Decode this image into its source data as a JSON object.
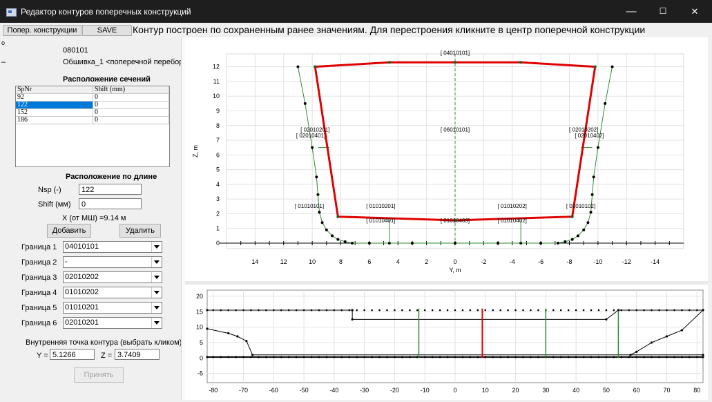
{
  "window": {
    "title": "Редактор контуров поперечных конструкций",
    "min_glyph": "—",
    "max_glyph": "☐",
    "close_glyph": "✕"
  },
  "toolbar": {
    "btn_cross": "Попер. конструкции",
    "btn_save": "SAVE",
    "message": "Контур построен по сохраненным ранее значениям. Для перестроения кликните в центр поперечной конструкции"
  },
  "left": {
    "corner_mark": "o",
    "dash_mark": "–",
    "code": "080101",
    "name": "Обшивка_1 <поперечной переборки 1>",
    "sections_title": "Расположение сечений",
    "grid": {
      "headers": [
        "SpNr",
        "Shift (mm)"
      ],
      "rows": [
        [
          "92",
          "0"
        ],
        [
          "122",
          "0"
        ],
        [
          "152",
          "0"
        ],
        [
          "186",
          "0"
        ]
      ]
    },
    "length_title": "Расположение по длине",
    "nsp_label": "Nsp (-)",
    "nsp_value": "122",
    "shift_label": "Shift (мм)",
    "shift_value": "0",
    "x_text": "X (от МШ) =9.14 м",
    "add": "Добавить",
    "del": "Удалить",
    "borders": [
      {
        "label": "Граница 1",
        "value": "04010101"
      },
      {
        "label": "Граница 2",
        "value": "-"
      },
      {
        "label": "Граница 3",
        "value": "02010202"
      },
      {
        "label": "Граница 4",
        "value": "01010202"
      },
      {
        "label": "Граница 5",
        "value": "01010201"
      },
      {
        "label": "Граница 6",
        "value": "02010201"
      }
    ],
    "inner_title": "Внутренняя точка контура (выбрать кликом)",
    "y_label": "Y =",
    "y_value": "5.1266",
    "z_label": "Z =",
    "z_value": "3.7409",
    "accept": "Принять"
  },
  "chart_data": [
    {
      "type": "line",
      "xlabel": "Y, m",
      "ylabel": "Z, m",
      "xlim": [
        16,
        -16
      ],
      "ylim": [
        0,
        12.5
      ],
      "x_ticks": [
        14,
        12,
        10,
        8,
        6,
        4,
        2,
        0,
        -2,
        -4,
        -6,
        -8,
        -10,
        -12,
        -14
      ],
      "y_ticks": [
        0,
        1,
        2,
        3,
        4,
        5,
        6,
        7,
        8,
        9,
        10,
        11,
        12
      ],
      "grid": true,
      "series": [
        {
          "color": "#2e8b2e",
          "x": [
            11,
            10.5,
            10,
            9.7,
            9.6,
            9.5,
            9.3,
            9.0,
            8.6,
            8.2,
            7.7,
            7.2,
            6,
            4.6,
            3,
            0,
            -3,
            -4.6,
            -6,
            -7.2,
            -7.7,
            -8.2,
            -8.6,
            -9.0,
            -9.3,
            -9.5,
            -9.6,
            -9.7,
            -10,
            -10.5,
            -11
          ],
          "y": [
            12,
            9.5,
            6.5,
            4.5,
            3.3,
            2.1,
            1.4,
            0.9,
            0.5,
            0.25,
            0.1,
            0,
            0,
            0,
            0,
            0,
            0,
            0,
            0,
            0,
            0.1,
            0.25,
            0.5,
            0.9,
            1.4,
            2.1,
            3.3,
            4.5,
            6.5,
            9.5,
            12
          ]
        },
        {
          "color": "#e00000",
          "x": [
            9.8,
            8.2,
            0,
            -8.2,
            -9.8,
            -4.6,
            0,
            4.6,
            9.8
          ],
          "y": [
            12,
            1.8,
            1.55,
            1.8,
            12,
            12.3,
            12.3,
            12.3,
            12
          ]
        }
      ],
      "labels": [
        {
          "text": "[ 04010101]",
          "x": 0,
          "y": 12.8
        },
        {
          "text": "[ 06010101]",
          "x": 0,
          "y": 7.6
        },
        {
          "text": "[ 02010201]",
          "x": 9.8,
          "y": 7.6
        },
        {
          "text": "[ 02010401]",
          "x": 10.1,
          "y": 7.2
        },
        {
          "text": "[ 02010202]",
          "x": -9.0,
          "y": 7.6
        },
        {
          "text": "[ 02010402]",
          "x": -9.4,
          "y": 7.2
        },
        {
          "text": "[ 01010101]",
          "x": 10.2,
          "y": 2.4
        },
        {
          "text": "[ 01010201]",
          "x": 5.2,
          "y": 2.4
        },
        {
          "text": "[ 01010401]",
          "x": 5.2,
          "y": 1.4
        },
        {
          "text": "[ 01010403]",
          "x": 0,
          "y": 1.4
        },
        {
          "text": "[ 01010202]",
          "x": -4.0,
          "y": 2.4
        },
        {
          "text": "[ 01010402]",
          "x": -4.0,
          "y": 1.4
        },
        {
          "text": "[ 01010102]",
          "x": -8.8,
          "y": 2.4
        }
      ]
    },
    {
      "type": "line",
      "xlim": [
        -82,
        82
      ],
      "ylim": [
        -8,
        22
      ],
      "x_ticks": [
        -80,
        -70,
        -60,
        -50,
        -40,
        -30,
        -20,
        -10,
        0,
        10,
        20,
        30,
        40,
        50,
        60,
        70,
        80
      ],
      "y_ticks": [
        20,
        15,
        10,
        5,
        0,
        -5
      ],
      "grid": true,
      "series": [
        {
          "color": "#000000",
          "x": [
            -82,
            -34,
            -34,
            50,
            54,
            54,
            82
          ],
          "y": [
            15.5,
            15.5,
            12.5,
            12.5,
            15.5,
            15.5,
            15.5
          ]
        },
        {
          "color": "#000000",
          "x": [
            -82,
            -75,
            -72,
            -69,
            -67,
            82
          ],
          "y": [
            9.5,
            8,
            7,
            5.5,
            1,
            1
          ]
        },
        {
          "color": "#000000",
          "x": [
            82,
            75,
            70,
            65,
            60,
            58
          ],
          "y": [
            15.5,
            9,
            7,
            5,
            2,
            1
          ]
        },
        {
          "color": "#000000",
          "x": [
            -82,
            82
          ],
          "y": [
            0.3,
            0.3
          ]
        }
      ],
      "bars": [
        {
          "x": -12,
          "y": [
            0,
            16
          ],
          "color": "#2e8b2e"
        },
        {
          "x": 9,
          "y": [
            0,
            16
          ],
          "color": "#e00000"
        },
        {
          "x": 30,
          "y": [
            0,
            16
          ],
          "color": "#2e8b2e"
        },
        {
          "x": 54,
          "y": [
            0,
            15
          ],
          "color": "#2e8b2e"
        }
      ]
    }
  ]
}
